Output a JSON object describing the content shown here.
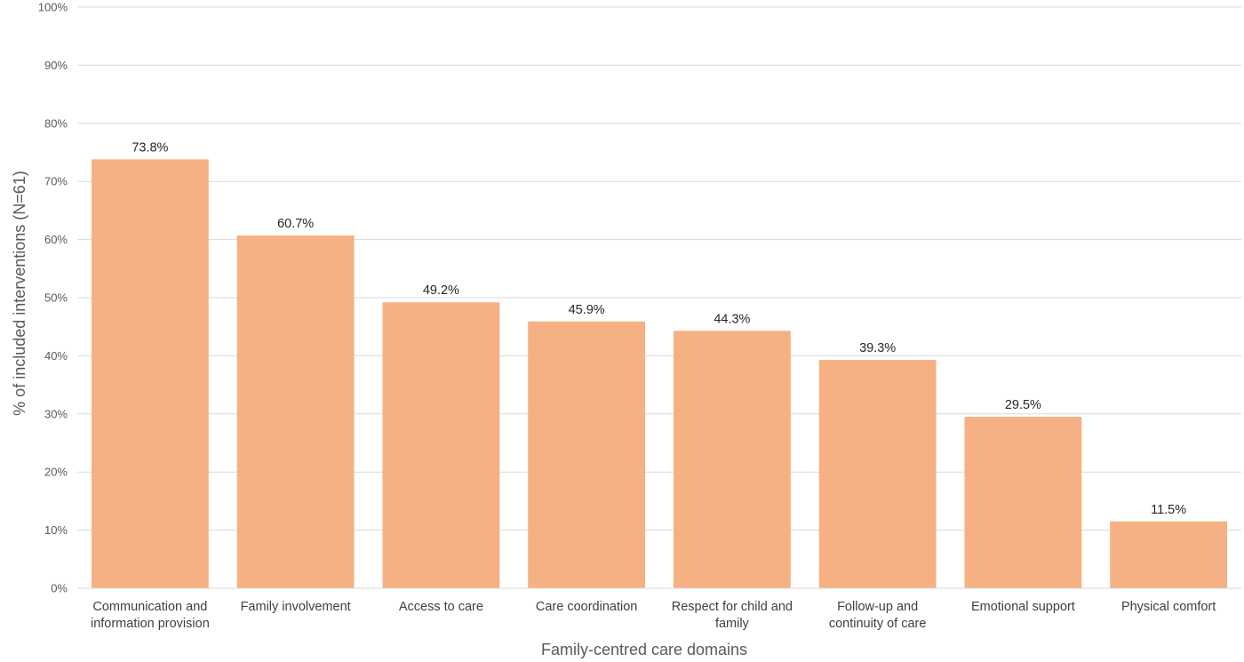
{
  "chart_data": {
    "type": "bar",
    "title": "",
    "xlabel": "Family-centred care domains",
    "ylabel": "% of included interventions (N=61)",
    "categories": [
      [
        "Communication and",
        "information provision"
      ],
      [
        "Family involvement"
      ],
      [
        "Access to care"
      ],
      [
        "Care coordination"
      ],
      [
        "Respect for child and",
        "family"
      ],
      [
        "Follow-up and",
        "continuity of care"
      ],
      [
        "Emotional support"
      ],
      [
        "Physical comfort"
      ]
    ],
    "values": [
      73.8,
      60.7,
      49.2,
      45.9,
      44.3,
      39.3,
      29.5,
      11.5
    ],
    "data_labels": [
      "73.8%",
      "60.7%",
      "49.2%",
      "45.9%",
      "44.3%",
      "39.3%",
      "29.5%",
      "11.5%"
    ],
    "ylim": [
      0,
      100
    ],
    "yticks": [
      "0%",
      "10%",
      "20%",
      "30%",
      "40%",
      "50%",
      "60%",
      "70%",
      "80%",
      "90%",
      "100%"
    ],
    "grid": true,
    "legend": "none",
    "bar_color": "#F5B183",
    "grid_color": "#D9D9D9"
  }
}
